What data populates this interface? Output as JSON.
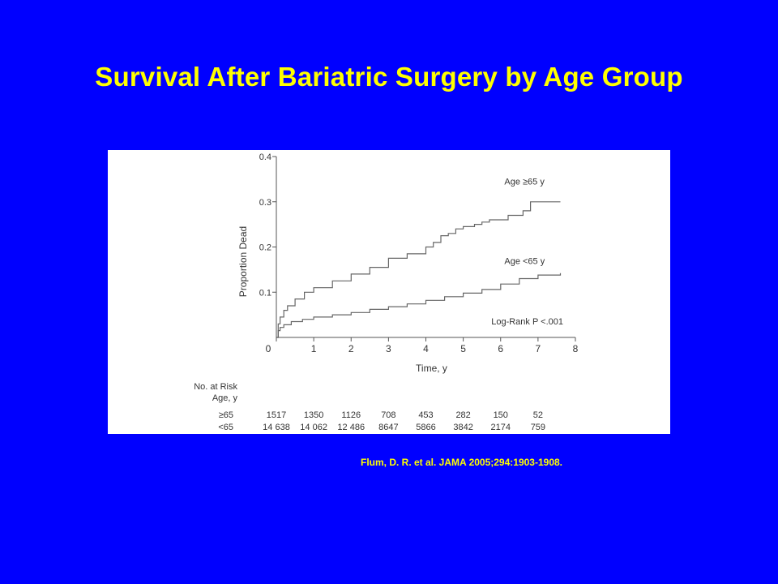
{
  "slide": {
    "title": "Survival After Bariatric Surgery by Age Group",
    "citation": "Flum, D. R. et al. JAMA 2005;294:1903-1908.",
    "background_color": "#0000ff",
    "title_color": "#ffff00"
  },
  "chart_data": {
    "type": "line",
    "xlabel": "Time, y",
    "ylabel": "Proportion Dead",
    "xlim": [
      0,
      8
    ],
    "ylim": [
      0,
      0.4
    ],
    "x_ticks": [
      "0",
      "1",
      "2",
      "3",
      "4",
      "5",
      "6",
      "7",
      "8"
    ],
    "y_ticks": [
      "0.1",
      "0.2",
      "0.3",
      "0.4"
    ],
    "grid": false,
    "annotation": "Log-Rank P <.001",
    "series": [
      {
        "name": "Age ≥65 y",
        "color": "#666666",
        "points": [
          [
            0,
            0
          ],
          [
            0.05,
            0.03
          ],
          [
            0.1,
            0.045
          ],
          [
            0.2,
            0.06
          ],
          [
            0.3,
            0.07
          ],
          [
            0.5,
            0.085
          ],
          [
            0.75,
            0.1
          ],
          [
            1,
            0.11
          ],
          [
            1.5,
            0.125
          ],
          [
            2,
            0.14
          ],
          [
            2.5,
            0.155
          ],
          [
            3,
            0.175
          ],
          [
            3.5,
            0.185
          ],
          [
            4,
            0.2
          ],
          [
            4.2,
            0.21
          ],
          [
            4.4,
            0.225
          ],
          [
            4.6,
            0.23
          ],
          [
            4.8,
            0.24
          ],
          [
            5,
            0.245
          ],
          [
            5.3,
            0.25
          ],
          [
            5.5,
            0.255
          ],
          [
            5.7,
            0.26
          ],
          [
            6,
            0.26
          ],
          [
            6.2,
            0.27
          ],
          [
            6.6,
            0.28
          ],
          [
            6.8,
            0.3
          ],
          [
            7.6,
            0.3
          ]
        ]
      },
      {
        "name": "Age <65 y",
        "color": "#666666",
        "points": [
          [
            0,
            0
          ],
          [
            0.05,
            0.015
          ],
          [
            0.1,
            0.022
          ],
          [
            0.2,
            0.028
          ],
          [
            0.4,
            0.035
          ],
          [
            0.7,
            0.04
          ],
          [
            1,
            0.045
          ],
          [
            1.5,
            0.05
          ],
          [
            2,
            0.055
          ],
          [
            2.5,
            0.062
          ],
          [
            3,
            0.068
          ],
          [
            3.5,
            0.074
          ],
          [
            4,
            0.082
          ],
          [
            4.5,
            0.09
          ],
          [
            5,
            0.098
          ],
          [
            5.5,
            0.106
          ],
          [
            6,
            0.118
          ],
          [
            6.5,
            0.13
          ],
          [
            7,
            0.138
          ],
          [
            7.6,
            0.142
          ]
        ]
      }
    ],
    "risk_table": {
      "header_line1": "No. at Risk",
      "header_line2": "Age, y",
      "rows": [
        {
          "label": "≥65",
          "values": [
            "1517",
            "1350",
            "1126",
            "708",
            "453",
            "282",
            "150",
            "52"
          ]
        },
        {
          "label": "<65",
          "values": [
            "14 638",
            "14 062",
            "12 486",
            "8647",
            "5866",
            "3842",
            "2174",
            "759"
          ]
        }
      ]
    }
  }
}
